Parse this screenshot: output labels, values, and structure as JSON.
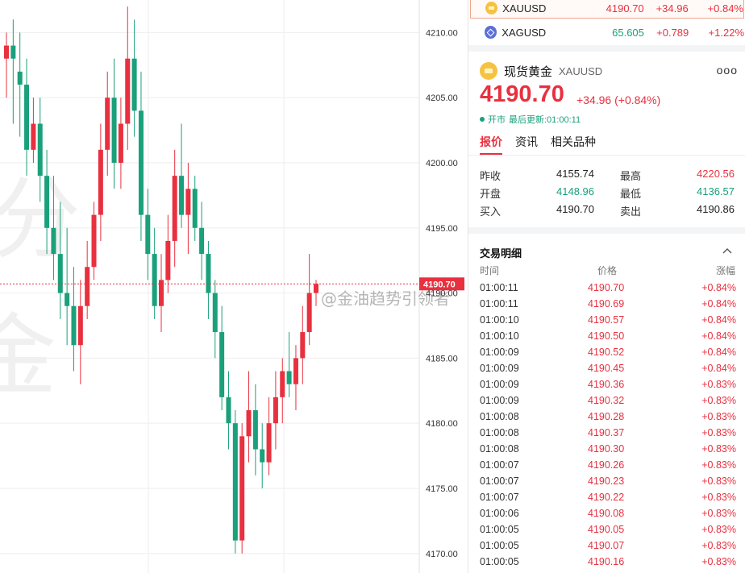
{
  "chart": {
    "y_labels": [
      "4210.00",
      "4205.00",
      "4200.00",
      "4195.00",
      "4190.00",
      "4185.00",
      "4180.00",
      "4175.00",
      "4170.00"
    ],
    "y_values": [
      4210,
      4205,
      4200,
      4195,
      4190,
      4185,
      4180,
      4175,
      4170
    ],
    "current_price_tag": "4190.70",
    "current_price": 4190.7,
    "watermark_text": "@金油趋势引领者",
    "bg_watermark_chars": [
      "分",
      "金"
    ],
    "colors": {
      "up": "#e8303f",
      "down": "#1aa07a",
      "grid": "#eeeeee",
      "tag": "#e8303f"
    }
  },
  "chart_data": {
    "type": "candlestick",
    "ylim": [
      4168.5,
      4212.5
    ],
    "candles": [
      [
        4208,
        4210,
        4205,
        4209
      ],
      [
        4209,
        4211,
        4203,
        4208
      ],
      [
        4207,
        4210,
        4202,
        4206
      ],
      [
        4206,
        4208,
        4199,
        4201
      ],
      [
        4201,
        4205,
        4200,
        4203
      ],
      [
        4203,
        4205,
        4197,
        4199
      ],
      [
        4199,
        4201,
        4193,
        4195
      ],
      [
        4195,
        4199,
        4191,
        4193
      ],
      [
        4193,
        4197,
        4188,
        4190
      ],
      [
        4190,
        4195,
        4186,
        4189
      ],
      [
        4189,
        4192,
        4184,
        4186
      ],
      [
        4186,
        4191,
        4183,
        4189
      ],
      [
        4189,
        4194,
        4188,
        4192
      ],
      [
        4192,
        4197,
        4191,
        4196
      ],
      [
        4196,
        4203,
        4194,
        4201
      ],
      [
        4201,
        4207,
        4199,
        4205
      ],
      [
        4205,
        4208,
        4198,
        4200
      ],
      [
        4200,
        4205,
        4198,
        4203
      ],
      [
        4203,
        4212,
        4201,
        4208
      ],
      [
        4208,
        4211,
        4202,
        4204
      ],
      [
        4204,
        4207,
        4194,
        4196
      ],
      [
        4196,
        4198,
        4191,
        4193
      ],
      [
        4193,
        4195,
        4188,
        4189
      ],
      [
        4189,
        4193,
        4187,
        4191
      ],
      [
        4191,
        4196,
        4190,
        4194
      ],
      [
        4194,
        4201,
        4192,
        4199
      ],
      [
        4199,
        4203,
        4195,
        4196
      ],
      [
        4196,
        4200,
        4193,
        4198
      ],
      [
        4198,
        4199,
        4194,
        4195
      ],
      [
        4195,
        4197,
        4191,
        4193
      ],
      [
        4193,
        4194,
        4188,
        4190
      ],
      [
        4190,
        4191,
        4185,
        4187
      ],
      [
        4187,
        4189,
        4181,
        4182
      ],
      [
        4182,
        4184,
        4178,
        4180
      ],
      [
        4180,
        4181,
        4170,
        4171
      ],
      [
        4171,
        4180,
        4170,
        4179
      ],
      [
        4179,
        4184,
        4177,
        4181
      ],
      [
        4181,
        4183,
        4176,
        4178
      ],
      [
        4178,
        4180,
        4175,
        4177
      ],
      [
        4177,
        4182,
        4176,
        4180
      ],
      [
        4180,
        4184,
        4178,
        4182
      ],
      [
        4182,
        4185,
        4180,
        4184
      ],
      [
        4184,
        4187,
        4182,
        4183
      ],
      [
        4183,
        4186,
        4181,
        4185
      ],
      [
        4185,
        4189,
        4183,
        4187
      ],
      [
        4187,
        4193,
        4186,
        4190
      ],
      [
        4190,
        4191,
        4189,
        4190.7
      ]
    ]
  },
  "quotes": [
    {
      "symbol": "XAUUSD",
      "price": "4190.70",
      "change": "+34.96",
      "pct": "+0.84%"
    },
    {
      "symbol": "XAGUSD",
      "price": "65.605",
      "change": "+0.789",
      "pct": "+1.22%"
    }
  ],
  "detail": {
    "name": "现货黄金",
    "symbol": "XAUUSD",
    "price": "4190.70",
    "change": "+34.96 (+0.84%)",
    "status": "开市",
    "updated": "最后更新:01:00:11",
    "more_icon": "ooo"
  },
  "tabs": [
    "报价",
    "资讯",
    "相关品种"
  ],
  "stats": [
    {
      "l1": "昨收",
      "v1": "4155.74",
      "l2": "最高",
      "v2": "4220.56"
    },
    {
      "l1": "开盘",
      "v1": "4148.96",
      "l2": "最低",
      "v2": "4136.57"
    },
    {
      "l1": "买入",
      "v1": "4190.70",
      "l2": "卖出",
      "v2": "4190.86"
    }
  ],
  "trades": {
    "title": "交易明细",
    "headers": {
      "time": "时间",
      "price": "价格",
      "pct": "涨幅"
    },
    "rows": [
      {
        "time": "01:00:11",
        "price": "4190.70",
        "pct": "+0.84%"
      },
      {
        "time": "01:00:11",
        "price": "4190.69",
        "pct": "+0.84%"
      },
      {
        "time": "01:00:10",
        "price": "4190.57",
        "pct": "+0.84%"
      },
      {
        "time": "01:00:10",
        "price": "4190.50",
        "pct": "+0.84%"
      },
      {
        "time": "01:00:09",
        "price": "4190.52",
        "pct": "+0.84%"
      },
      {
        "time": "01:00:09",
        "price": "4190.45",
        "pct": "+0.84%"
      },
      {
        "time": "01:00:09",
        "price": "4190.36",
        "pct": "+0.83%"
      },
      {
        "time": "01:00:09",
        "price": "4190.32",
        "pct": "+0.83%"
      },
      {
        "time": "01:00:08",
        "price": "4190.28",
        "pct": "+0.83%"
      },
      {
        "time": "01:00:08",
        "price": "4190.37",
        "pct": "+0.83%"
      },
      {
        "time": "01:00:08",
        "price": "4190.30",
        "pct": "+0.83%"
      },
      {
        "time": "01:00:07",
        "price": "4190.26",
        "pct": "+0.83%"
      },
      {
        "time": "01:00:07",
        "price": "4190.23",
        "pct": "+0.83%"
      },
      {
        "time": "01:00:07",
        "price": "4190.22",
        "pct": "+0.83%"
      },
      {
        "time": "01:00:06",
        "price": "4190.08",
        "pct": "+0.83%"
      },
      {
        "time": "01:00:05",
        "price": "4190.05",
        "pct": "+0.83%"
      },
      {
        "time": "01:00:05",
        "price": "4190.07",
        "pct": "+0.83%"
      },
      {
        "time": "01:00:05",
        "price": "4190.16",
        "pct": "+0.83%"
      }
    ]
  }
}
